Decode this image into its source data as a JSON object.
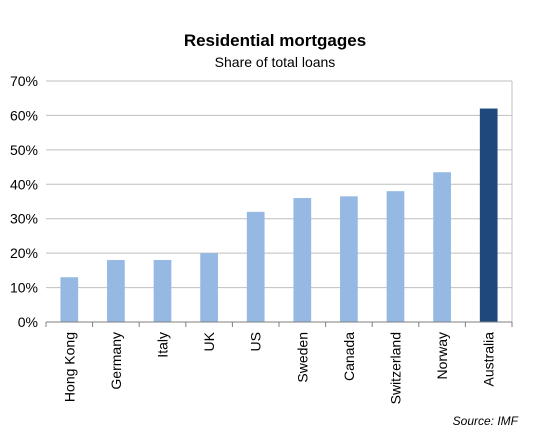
{
  "chart_data": {
    "type": "bar",
    "title": "Residential mortgages",
    "subtitle": "Share of total loans",
    "categories": [
      "Hong Kong",
      "Germany",
      "Italy",
      "UK",
      "US",
      "Sweden",
      "Canada",
      "Switzerland",
      "Norway",
      "Australia"
    ],
    "values": [
      13,
      18,
      18,
      20,
      32,
      36,
      36.5,
      38,
      43.5,
      62
    ],
    "highlight": "Australia",
    "ylim": [
      0,
      70
    ],
    "yticks": [
      "0%",
      "10%",
      "20%",
      "30%",
      "40%",
      "50%",
      "60%",
      "70%"
    ],
    "ytick_values": [
      0,
      10,
      20,
      30,
      40,
      50,
      60,
      70
    ],
    "grid": true,
    "colors": {
      "bar": "#95b9e3",
      "highlight": "#1f497d",
      "grid": "#bfbfbf",
      "axis": "#7f7f7f"
    },
    "source": "Source: IMF"
  }
}
